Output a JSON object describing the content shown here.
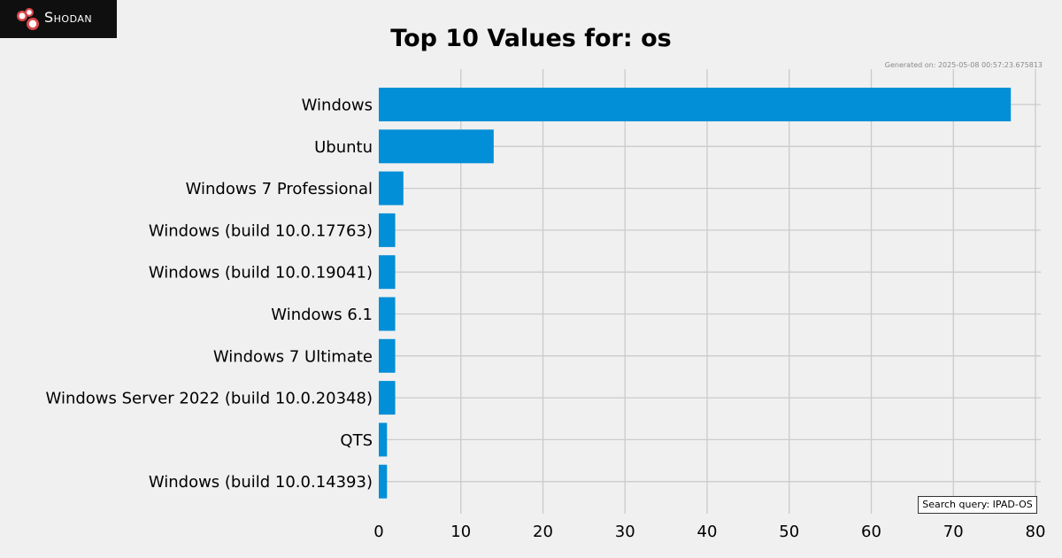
{
  "brand": {
    "name": "Shodan",
    "logo_icon": "shodan-logo-icon",
    "colors": {
      "background": "#0f0f0f",
      "logo": "#d9464b"
    }
  },
  "generated_text": "Generated on: 2025-05-08 00:57:23.675813",
  "search_query_text": "Search query: IPAD-OS",
  "chart_data": {
    "type": "bar",
    "orientation": "horizontal",
    "title": "Top 10 Values for: os",
    "xlabel": "",
    "ylabel": "",
    "xlim": [
      0,
      80
    ],
    "xticks": [
      0,
      10,
      20,
      30,
      40,
      50,
      60,
      70,
      80
    ],
    "grid": true,
    "bar_color": "#028fd7",
    "categories": [
      "Windows",
      "Ubuntu",
      "Windows 7 Professional",
      "Windows (build 10.0.17763)",
      "Windows (build 10.0.19041)",
      "Windows 6.1",
      "Windows 7 Ultimate",
      "Windows Server 2022 (build 10.0.20348)",
      "QTS",
      "Windows (build 10.0.14393)"
    ],
    "values": [
      77,
      14,
      3,
      2,
      2,
      2,
      2,
      2,
      1,
      1
    ]
  }
}
